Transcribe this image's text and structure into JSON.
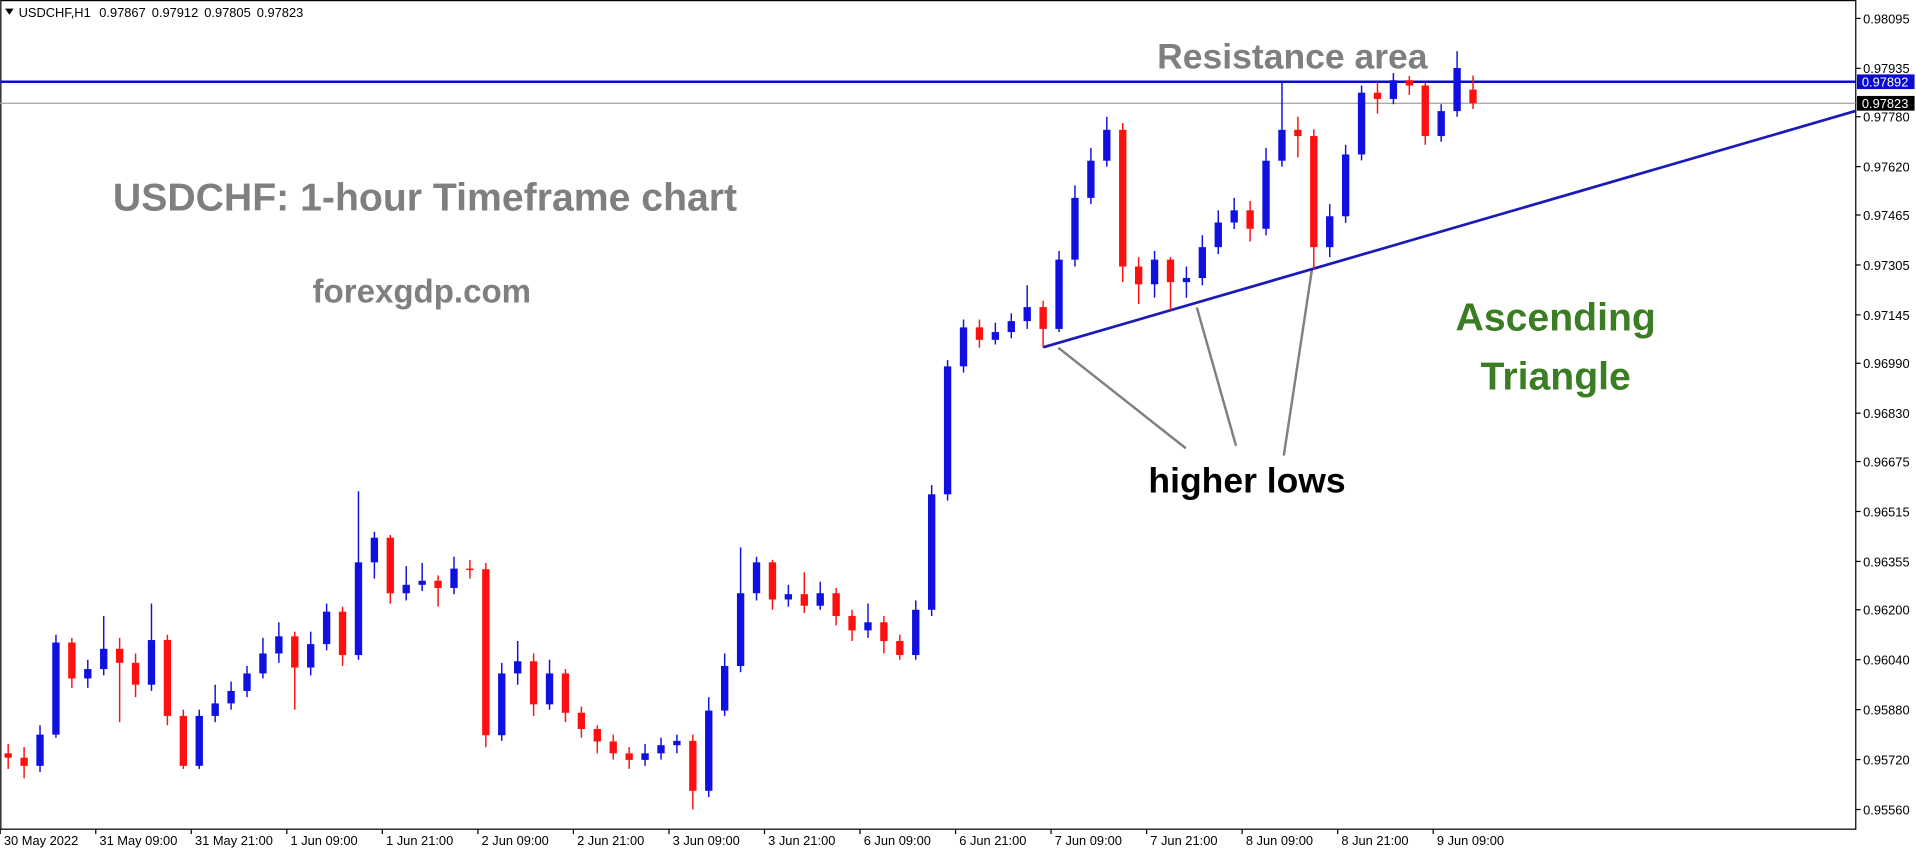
{
  "header": {
    "symbol": "USDCHF,H1",
    "values": [
      0.97867,
      0.97912,
      0.97805,
      0.97823
    ]
  },
  "chart_data": {
    "type": "candlestick",
    "categories": [
      "30 May 2022",
      null,
      null,
      null,
      null,
      null,
      "31 May 09:00",
      null,
      null,
      null,
      null,
      null,
      "31 May 21:00",
      null,
      null,
      null,
      null,
      null,
      "1 Jun 09:00",
      null,
      null,
      null,
      null,
      null,
      "1 Jun 21:00",
      null,
      null,
      null,
      null,
      null,
      "2 Jun 09:00",
      null,
      null,
      null,
      null,
      null,
      "2 Jun 21:00",
      null,
      null,
      null,
      null,
      null,
      "3 Jun 09:00",
      null,
      null,
      null,
      null,
      null,
      "3 Jun 21:00",
      null,
      null,
      null,
      null,
      null,
      "6 Jun 09:00",
      null,
      null,
      null,
      null,
      null,
      "6 Jun 21:00",
      null,
      null,
      null,
      null,
      null,
      "7 Jun 09:00",
      null,
      null,
      null,
      null,
      null,
      "7 Jun 21:00",
      null,
      null,
      null,
      null,
      null,
      "8 Jun 09:00",
      null,
      null,
      null,
      null,
      null,
      "8 Jun 21:00",
      null,
      null,
      null,
      null,
      null,
      "9 Jun 09:00",
      null,
      null
    ],
    "open": [
      0.9574,
      0.95726,
      0.957,
      0.958,
      0.96095,
      0.9598,
      0.9601,
      0.96075,
      0.9603,
      0.9596,
      0.96103,
      0.9586,
      0.957,
      0.9586,
      0.959,
      0.9594,
      0.95996,
      0.9606,
      0.96115,
      0.96015,
      0.9609,
      0.96194,
      0.96055,
      0.96352,
      0.96431,
      0.96253,
      0.9628,
      0.96293,
      0.9627,
      0.96332,
      0.9633,
      0.95798,
      0.95996,
      0.96035,
      0.95897,
      0.95996,
      0.9587,
      0.95818,
      0.95778,
      0.9574,
      0.95719,
      0.9574,
      0.95766,
      0.9578,
      0.9562,
      0.95877,
      0.9602,
      0.96253,
      0.96352,
      0.96233,
      0.9625,
      0.96213,
      0.96253,
      0.9618,
      0.96134,
      0.9616,
      0.961,
      0.96055,
      0.962,
      0.9657,
      0.9698,
      0.97105,
      0.97065,
      0.9709,
      0.97125,
      0.9717,
      0.971,
      0.97322,
      0.9752,
      0.97639,
      0.97738,
      0.973,
      0.97243,
      0.97322,
      0.9725,
      0.97263,
      0.97362,
      0.97441,
      0.9748,
      0.97421,
      0.97639,
      0.97738,
      0.97718,
      0.97362,
      0.97461,
      0.97659,
      0.97857,
      0.97837,
      0.97897,
      0.9788,
      0.97718,
      0.97798,
      0.97867
    ],
    "high": [
      0.9577,
      0.9576,
      0.9583,
      0.9612,
      0.9611,
      0.9604,
      0.9618,
      0.9611,
      0.9606,
      0.9622,
      0.9612,
      0.9588,
      0.9588,
      0.9596,
      0.9597,
      0.9602,
      0.9611,
      0.9616,
      0.9613,
      0.9613,
      0.9622,
      0.9621,
      0.9658,
      0.9645,
      0.9644,
      0.9634,
      0.9635,
      0.9631,
      0.9637,
      0.9636,
      0.9635,
      0.9603,
      0.961,
      0.9606,
      0.9604,
      0.9601,
      0.9589,
      0.9583,
      0.958,
      0.9576,
      0.9577,
      0.9579,
      0.958,
      0.958,
      0.9592,
      0.9606,
      0.964,
      0.9637,
      0.9636,
      0.9628,
      0.9632,
      0.9629,
      0.9627,
      0.962,
      0.9622,
      0.9618,
      0.9612,
      0.9623,
      0.966,
      0.97,
      0.9713,
      0.9713,
      0.9712,
      0.9715,
      0.9724,
      0.9719,
      0.9735,
      0.9756,
      0.9768,
      0.9778,
      0.9776,
      0.9733,
      0.9735,
      0.9733,
      0.973,
      0.974,
      0.9748,
      0.9752,
      0.9751,
      0.9768,
      0.97892,
      0.9778,
      0.9774,
      0.975,
      0.9769,
      0.9788,
      0.9789,
      0.9792,
      0.9791,
      0.9789,
      0.9782,
      0.9799,
      0.97912
    ],
    "low": [
      0.9569,
      0.9566,
      0.9568,
      0.9579,
      0.9595,
      0.9595,
      0.9599,
      0.9584,
      0.9592,
      0.9594,
      0.9583,
      0.9569,
      0.9569,
      0.9584,
      0.9588,
      0.9592,
      0.9598,
      0.9603,
      0.9588,
      0.9599,
      0.9607,
      0.9602,
      0.9604,
      0.963,
      0.9622,
      0.9623,
      0.9626,
      0.9621,
      0.9625,
      0.963,
      0.9576,
      0.9578,
      0.9596,
      0.9586,
      0.9588,
      0.9584,
      0.9579,
      0.9574,
      0.9572,
      0.9569,
      0.957,
      0.9572,
      0.9574,
      0.9556,
      0.956,
      0.9586,
      0.96,
      0.9623,
      0.962,
      0.9621,
      0.9619,
      0.962,
      0.9615,
      0.961,
      0.9611,
      0.9606,
      0.9604,
      0.9604,
      0.9618,
      0.9655,
      0.9696,
      0.9704,
      0.9705,
      0.9707,
      0.971,
      0.9704,
      0.9709,
      0.973,
      0.975,
      0.9762,
      0.9725,
      0.9718,
      0.972,
      0.9716,
      0.972,
      0.9724,
      0.9734,
      0.9742,
      0.9738,
      0.974,
      0.9762,
      0.9765,
      0.97291,
      0.9733,
      0.9744,
      0.9764,
      0.9779,
      0.9782,
      0.9785,
      0.9769,
      0.977,
      0.9778,
      0.97805
    ],
    "close": [
      0.95726,
      0.957,
      0.958,
      0.96095,
      0.9598,
      0.9601,
      0.96075,
      0.9603,
      0.9596,
      0.96103,
      0.9586,
      0.957,
      0.9586,
      0.959,
      0.9594,
      0.95996,
      0.9606,
      0.96115,
      0.96015,
      0.9609,
      0.96194,
      0.96055,
      0.96352,
      0.96431,
      0.96253,
      0.9628,
      0.96293,
      0.9627,
      0.96332,
      0.9633,
      0.95798,
      0.95996,
      0.96035,
      0.95897,
      0.95996,
      0.9587,
      0.95818,
      0.95778,
      0.9574,
      0.95719,
      0.9574,
      0.95766,
      0.9578,
      0.9562,
      0.95877,
      0.9602,
      0.96253,
      0.96352,
      0.96233,
      0.9625,
      0.96213,
      0.96253,
      0.9618,
      0.96134,
      0.9616,
      0.961,
      0.96055,
      0.962,
      0.9657,
      0.9698,
      0.97105,
      0.97065,
      0.9709,
      0.97125,
      0.9717,
      0.971,
      0.97322,
      0.9752,
      0.97639,
      0.97738,
      0.973,
      0.97243,
      0.97322,
      0.9725,
      0.97263,
      0.97362,
      0.97441,
      0.9748,
      0.97421,
      0.97639,
      0.97738,
      0.97718,
      0.97362,
      0.97461,
      0.97659,
      0.97857,
      0.97837,
      0.97897,
      0.9788,
      0.97718,
      0.97798,
      0.97936,
      0.97823
    ],
    "up_color": "#1010e0",
    "down_color": "#ff1010",
    "ylim": [
      0.95497,
      0.98154
    ],
    "yticks": [
      0.98095,
      0.97935,
      {
        "value": 0.9778,
        "label": "0.97780"
      },
      {
        "value": 0.9762,
        "label": "0.97620"
      },
      0.97465,
      0.97305,
      0.97145,
      {
        "value": 0.9699,
        "label": "0.96990"
      },
      {
        "value": 0.9683,
        "label": "0.96830"
      },
      0.96675,
      0.96515,
      0.96355,
      {
        "value": 0.962,
        "label": "0.96200"
      },
      {
        "value": 0.9604,
        "label": "0.96040"
      },
      {
        "value": 0.9588,
        "label": "0.95880"
      },
      {
        "value": 0.9572,
        "label": "0.95720"
      },
      {
        "value": 0.9556,
        "label": "0.95560"
      }
    ],
    "levels": [
      {
        "value": 0.97892,
        "color": "#0a0ad0"
      },
      {
        "value": 0.97823,
        "color": "#a0a0a0"
      }
    ],
    "trendline": {
      "x": [
        65,
        116
      ],
      "values": [
        0.97041,
        0.97798
      ],
      "color": "#1a1ab8"
    },
    "annotations": [
      {
        "text": "Resistance area",
        "color": "#7f7f7f"
      },
      {
        "text": "USDCHF: 1-hour Timeframe chart",
        "color": "#7f7f7f"
      },
      {
        "text": "forexgdp.com",
        "color": "#7f7f7f"
      },
      {
        "text": "Ascending",
        "color": "#3a7d22"
      },
      {
        "text": "Triangle",
        "color": "#3a7d22"
      },
      {
        "text": "higher lows",
        "color": "#000000"
      }
    ]
  }
}
